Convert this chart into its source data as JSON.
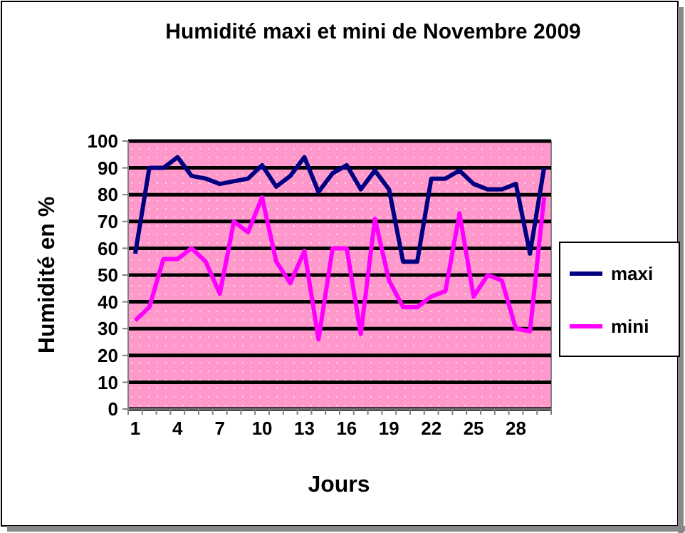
{
  "chart_data": {
    "type": "line",
    "title": "Humidité maxi et mini de Novembre 2009",
    "xlabel": "Jours",
    "ylabel": "Humidité en %",
    "categories": [
      "1",
      null,
      null,
      "4",
      null,
      null,
      "7",
      null,
      null,
      "10",
      null,
      null,
      "13",
      null,
      null,
      "16",
      null,
      null,
      "19",
      null,
      null,
      "22",
      null,
      null,
      "25",
      null,
      null,
      "28",
      null,
      null
    ],
    "series": [
      {
        "name": "maxi",
        "color": "#000080",
        "values": [
          58,
          90,
          90,
          94,
          87,
          86,
          84,
          85,
          86,
          91,
          83,
          87,
          94,
          81,
          88,
          91,
          82,
          89,
          82,
          55,
          55,
          86,
          86,
          89,
          84,
          82,
          82,
          84,
          58,
          90
        ]
      },
      {
        "name": "mini",
        "color": "#ff00ff",
        "values": [
          33,
          38,
          56,
          56,
          60,
          55,
          43,
          70,
          66,
          79,
          55,
          47,
          59,
          26,
          60,
          60,
          28,
          71,
          48,
          38,
          38,
          42,
          44,
          73,
          42,
          50,
          48,
          30,
          29,
          79
        ]
      }
    ],
    "ylim": [
      0,
      100
    ],
    "yticks": [
      0,
      10,
      20,
      30,
      40,
      50,
      60,
      70,
      80,
      90,
      100
    ],
    "grid": "y",
    "legend": "right",
    "marker": "none",
    "line_style": "solid"
  }
}
